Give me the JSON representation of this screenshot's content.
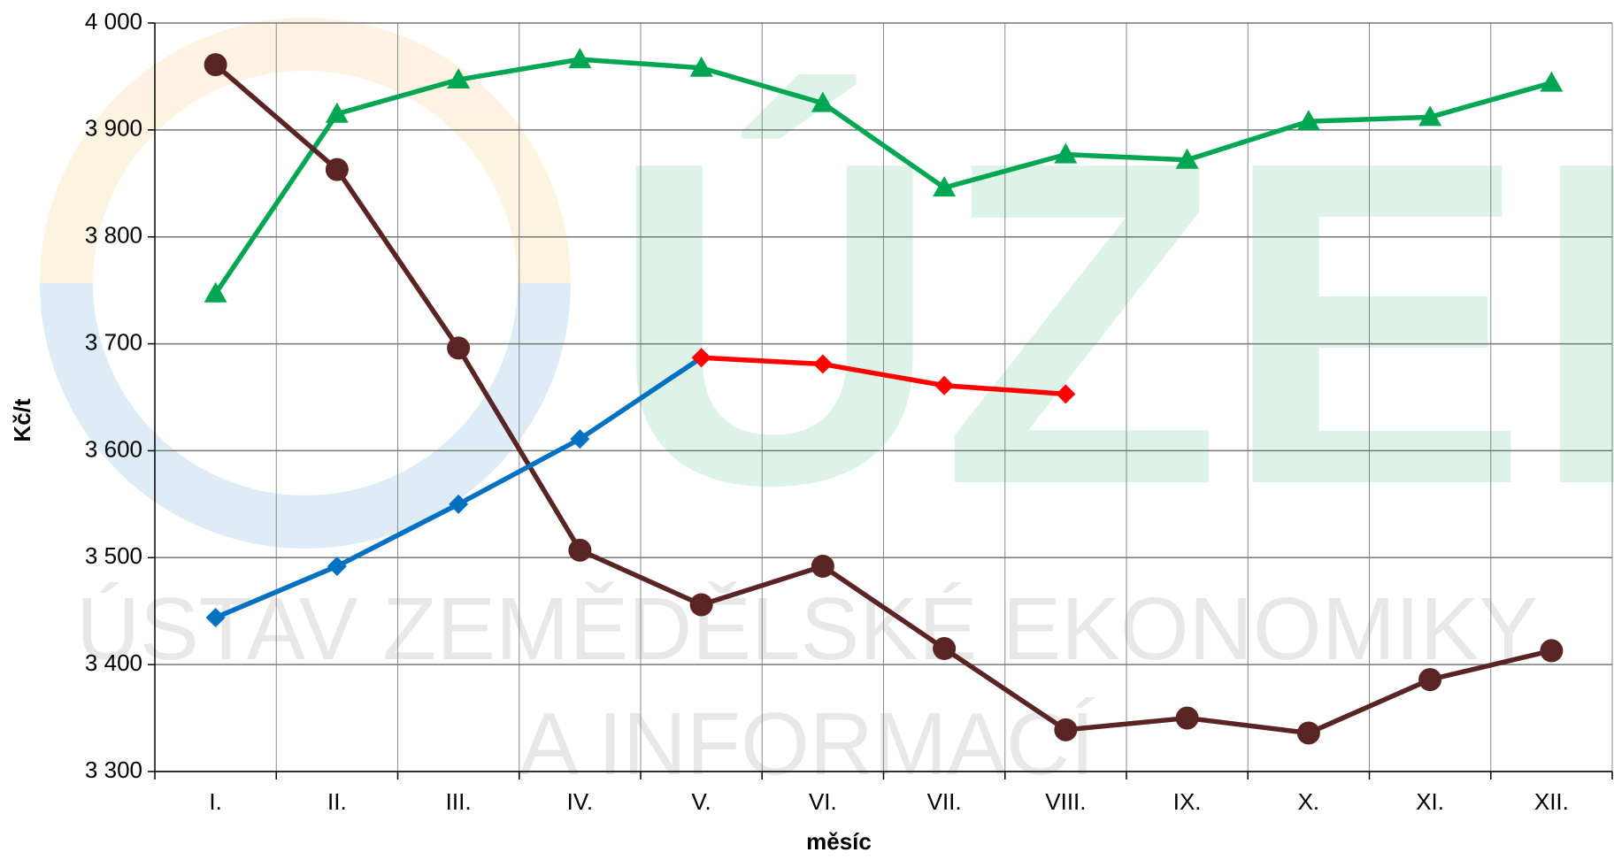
{
  "chart_data": {
    "type": "line",
    "x_label": "měsíc",
    "y_label": "Kč/t",
    "categories": [
      "I.",
      "II.",
      "III.",
      "IV.",
      "V.",
      "VI.",
      "VII.",
      "VIII.",
      "IX.",
      "X.",
      "XI.",
      "XII."
    ],
    "ylim": [
      3300,
      4000
    ],
    "yticks": [
      {
        "value": 3300,
        "label": "3 300"
      },
      {
        "value": 3400,
        "label": "3 400"
      },
      {
        "value": 3500,
        "label": "3 500"
      },
      {
        "value": 3600,
        "label": "3 600"
      },
      {
        "value": 3700,
        "label": "3 700"
      },
      {
        "value": 3800,
        "label": "3 800"
      },
      {
        "value": 3900,
        "label": "3 900"
      },
      {
        "value": 4000,
        "label": "4 000"
      }
    ],
    "grid": true,
    "series": [
      {
        "color": "#00a651",
        "marker": "triangle",
        "values": [
          3747,
          3915,
          3947,
          3966,
          3958,
          3925,
          3846,
          3877,
          3872,
          3908,
          3912,
          3944
        ]
      },
      {
        "color": "#5a2424",
        "marker": "circle",
        "values": [
          3961,
          3863,
          3696,
          3507,
          3456,
          3492,
          3415,
          3339,
          3350,
          3336,
          3386,
          3413
        ]
      },
      {
        "color": "#0070c0",
        "marker": "diamond",
        "values": [
          3444,
          3492,
          3550,
          3611,
          3687,
          null,
          null,
          null,
          null,
          null,
          null,
          null
        ]
      },
      {
        "color": "#ff0000",
        "marker": "diamond",
        "values": [
          null,
          null,
          null,
          null,
          3687,
          3681,
          3661,
          3653,
          null,
          null,
          null,
          null
        ]
      }
    ],
    "watermark": {
      "logo": "ÚZEI",
      "line1": "ÚSTAV ZEMĚDĚLSKÉ EKONOMIKY",
      "line2": "A INFORMACÍ"
    }
  }
}
